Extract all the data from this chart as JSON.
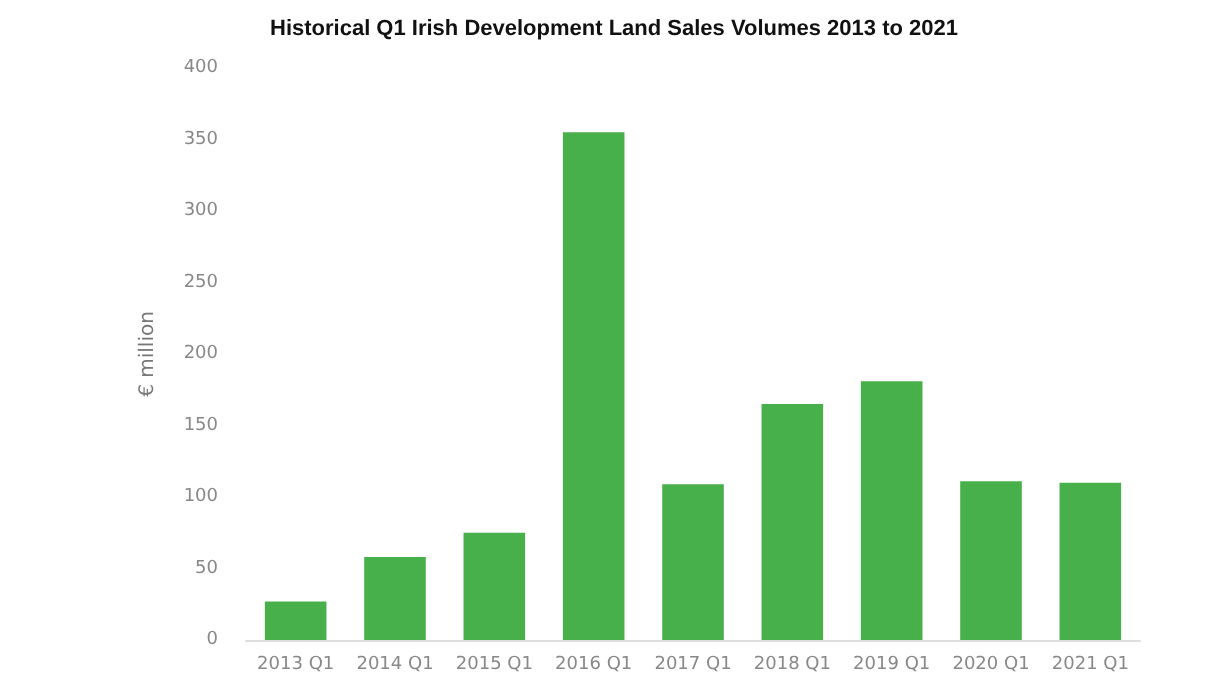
{
  "chart_data": {
    "type": "bar",
    "title": "Historical Q1 Irish Development Land Sales Volumes 2013 to 2021",
    "ylabel": "€ million",
    "categories": [
      "2013 Q1",
      "2014 Q1",
      "2015 Q1",
      "2016 Q1",
      "2017 Q1",
      "2018 Q1",
      "2019 Q1",
      "2020 Q1",
      "2021 Q1"
    ],
    "values": [
      27,
      58,
      75,
      355,
      109,
      165,
      181,
      111,
      110
    ],
    "color": "#48b04b",
    "ylim": [
      0,
      400
    ],
    "yticks": [
      0,
      50,
      100,
      150,
      200,
      250,
      300,
      350,
      400
    ],
    "grid": false
  }
}
